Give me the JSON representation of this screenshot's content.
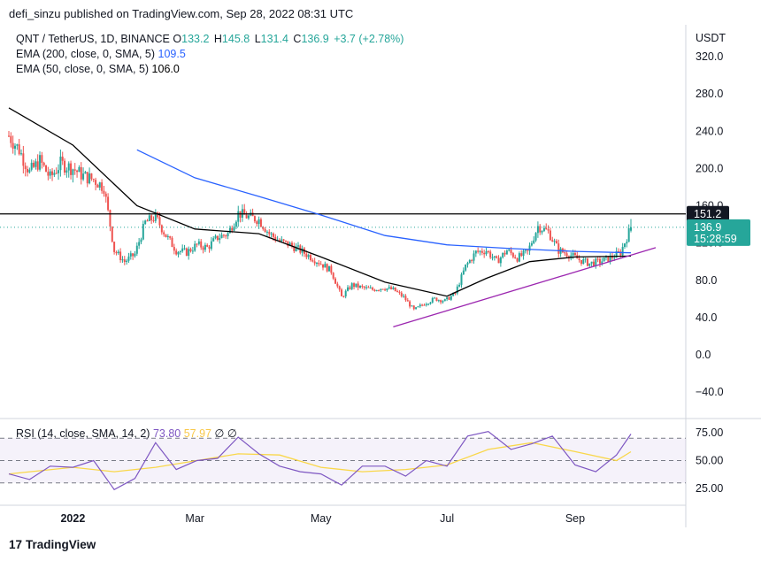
{
  "header": {
    "published": "defi_sinzu published on TradingView.com, Sep 28, 2022 08:31 UTC"
  },
  "legend": {
    "symbol": "QNT / TetherUS, 1D, BINANCE",
    "o_label": "O",
    "o": "133.2",
    "h_label": "H",
    "h": "145.8",
    "l_label": "L",
    "l": "131.4",
    "c_label": "C",
    "c": "136.9",
    "change": "+3.7 (+2.78%)",
    "ema200_label": "EMA (200, close, 0, SMA, 5)",
    "ema200_value": "109.5",
    "ema50_label": "EMA (50, close, 0, SMA, 5)",
    "ema50_value": "106.0",
    "rsi_label": "RSI (14, close, SMA, 14, 2)",
    "rsi_value": "73.80",
    "rsi_ma_value": "57.97",
    "rsi_extra": "∅ ∅"
  },
  "price_axis": {
    "currency": "USDT",
    "ticks": [
      "320.0",
      "280.0",
      "240.0",
      "200.0",
      "160.0",
      "120.0",
      "80.0",
      "40.0",
      "0.0",
      "−40.0"
    ]
  },
  "rsi_axis": {
    "ticks": [
      "75.00",
      "50.00",
      "25.00"
    ]
  },
  "time_axis": {
    "ticks": [
      "2022",
      "Mar",
      "May",
      "Jul",
      "Sep"
    ]
  },
  "markers": {
    "line_price": "151.2",
    "last_price": "136.9",
    "countdown": "15:28:59"
  },
  "branding": {
    "logo_text": "TradingView",
    "logo_glyph": "17"
  },
  "colors": {
    "up": "#26a69a",
    "down": "#ef5350",
    "ema200": "#2962ff",
    "ema50": "#000000",
    "trend": "#9c27b0",
    "rsi": "#7e57c2",
    "rsi_ma": "#f9d74a",
    "last": "#26a69a"
  },
  "chart_data": [
    {
      "type": "candlestick",
      "title": "QNT / TetherUS, 1D, BINANCE",
      "ylabel": "USDT",
      "ylim": [
        -60,
        340
      ],
      "x_ticks": [
        "2022",
        "Mar",
        "May",
        "Jul",
        "Sep"
      ],
      "close_series": [
        [
          "2021-12-01",
          235
        ],
        [
          "2021-12-06",
          220
        ],
        [
          "2021-12-11",
          196
        ],
        [
          "2021-12-16",
          208
        ],
        [
          "2021-12-21",
          190
        ],
        [
          "2021-12-26",
          205
        ],
        [
          "2022-01-01",
          200
        ],
        [
          "2022-01-06",
          192
        ],
        [
          "2022-01-11",
          188
        ],
        [
          "2022-01-16",
          180
        ],
        [
          "2022-01-21",
          112
        ],
        [
          "2022-01-26",
          100
        ],
        [
          "2022-01-31",
          108
        ],
        [
          "2022-02-05",
          142
        ],
        [
          "2022-02-10",
          148
        ],
        [
          "2022-02-15",
          128
        ],
        [
          "2022-02-20",
          112
        ],
        [
          "2022-02-25",
          110
        ],
        [
          "2022-03-02",
          118
        ],
        [
          "2022-03-07",
          115
        ],
        [
          "2022-03-12",
          126
        ],
        [
          "2022-03-17",
          130
        ],
        [
          "2022-03-22",
          152
        ],
        [
          "2022-03-27",
          148
        ],
        [
          "2022-04-01",
          145
        ],
        [
          "2022-04-06",
          130
        ],
        [
          "2022-04-11",
          122
        ],
        [
          "2022-04-16",
          118
        ],
        [
          "2022-04-21",
          112
        ],
        [
          "2022-04-26",
          105
        ],
        [
          "2022-05-01",
          98
        ],
        [
          "2022-05-06",
          90
        ],
        [
          "2022-05-11",
          62
        ],
        [
          "2022-05-16",
          75
        ],
        [
          "2022-05-21",
          72
        ],
        [
          "2022-05-26",
          70
        ],
        [
          "2022-05-31",
          72
        ],
        [
          "2022-06-05",
          70
        ],
        [
          "2022-06-10",
          62
        ],
        [
          "2022-06-15",
          48
        ],
        [
          "2022-06-20",
          55
        ],
        [
          "2022-06-25",
          60
        ],
        [
          "2022-06-30",
          58
        ],
        [
          "2022-07-05",
          66
        ],
        [
          "2022-07-10",
          95
        ],
        [
          "2022-07-15",
          110
        ],
        [
          "2022-07-20",
          112
        ],
        [
          "2022-07-25",
          100
        ],
        [
          "2022-07-30",
          112
        ],
        [
          "2022-08-04",
          104
        ],
        [
          "2022-08-09",
          110
        ],
        [
          "2022-08-14",
          138
        ],
        [
          "2022-08-19",
          132
        ],
        [
          "2022-08-24",
          112
        ],
        [
          "2022-08-29",
          108
        ],
        [
          "2022-09-03",
          102
        ],
        [
          "2022-09-08",
          98
        ],
        [
          "2022-09-13",
          100
        ],
        [
          "2022-09-18",
          104
        ],
        [
          "2022-09-23",
          110
        ],
        [
          "2022-09-28",
          136.9
        ]
      ],
      "last_candle": {
        "open": 133.2,
        "high": 145.8,
        "low": 131.4,
        "close": 136.9
      },
      "ema200": [
        [
          "2022-02-01",
          220
        ],
        [
          "2022-03-01",
          190
        ],
        [
          "2022-04-01",
          170
        ],
        [
          "2022-05-01",
          150
        ],
        [
          "2022-06-01",
          128
        ],
        [
          "2022-07-01",
          118
        ],
        [
          "2022-08-01",
          114
        ],
        [
          "2022-09-01",
          111
        ],
        [
          "2022-09-28",
          109.5
        ]
      ],
      "ema50": [
        [
          "2021-12-01",
          265
        ],
        [
          "2022-01-01",
          225
        ],
        [
          "2022-02-01",
          160
        ],
        [
          "2022-03-01",
          135
        ],
        [
          "2022-04-01",
          130
        ],
        [
          "2022-05-01",
          105
        ],
        [
          "2022-06-01",
          78
        ],
        [
          "2022-07-01",
          63
        ],
        [
          "2022-07-20",
          82
        ],
        [
          "2022-08-10",
          100
        ],
        [
          "2022-09-01",
          105
        ],
        [
          "2022-09-28",
          106
        ]
      ],
      "horizontal_line": 151.2,
      "trendline": [
        [
          "2022-06-05",
          30
        ],
        [
          "2022-10-10",
          115
        ]
      ]
    },
    {
      "type": "line",
      "title": "RSI (14, close, SMA, 14, 2)",
      "ylim": [
        0,
        100
      ],
      "bands": [
        30,
        50,
        70
      ],
      "series": [
        {
          "name": "RSI",
          "points": [
            [
              "2021-12-01",
              38
            ],
            [
              "2021-12-11",
              33
            ],
            [
              "2021-12-21",
              45
            ],
            [
              "2022-01-01",
              44
            ],
            [
              "2022-01-11",
              50
            ],
            [
              "2022-01-21",
              24
            ],
            [
              "2022-01-31",
              34
            ],
            [
              "2022-02-10",
              66
            ],
            [
              "2022-02-20",
              42
            ],
            [
              "2022-03-02",
              50
            ],
            [
              "2022-03-12",
              52
            ],
            [
              "2022-03-22",
              71
            ],
            [
              "2022-04-01",
              56
            ],
            [
              "2022-04-11",
              45
            ],
            [
              "2022-04-21",
              40
            ],
            [
              "2022-05-01",
              38
            ],
            [
              "2022-05-11",
              28
            ],
            [
              "2022-05-21",
              45
            ],
            [
              "2022-06-01",
              45
            ],
            [
              "2022-06-11",
              36
            ],
            [
              "2022-06-21",
              50
            ],
            [
              "2022-07-01",
              45
            ],
            [
              "2022-07-11",
              72
            ],
            [
              "2022-07-21",
              76
            ],
            [
              "2022-08-01",
              60
            ],
            [
              "2022-08-11",
              65
            ],
            [
              "2022-08-21",
              72
            ],
            [
              "2022-09-01",
              46
            ],
            [
              "2022-09-11",
              40
            ],
            [
              "2022-09-21",
              55
            ],
            [
              "2022-09-28",
              73.8
            ]
          ]
        },
        {
          "name": "RSI-based MA",
          "points": [
            [
              "2021-12-01",
              38
            ],
            [
              "2022-01-01",
              44
            ],
            [
              "2022-01-21",
              40
            ],
            [
              "2022-02-10",
              44
            ],
            [
              "2022-03-02",
              50
            ],
            [
              "2022-03-22",
              56
            ],
            [
              "2022-04-11",
              55
            ],
            [
              "2022-05-01",
              44
            ],
            [
              "2022-05-21",
              40
            ],
            [
              "2022-06-11",
              42
            ],
            [
              "2022-07-01",
              46
            ],
            [
              "2022-07-21",
              60
            ],
            [
              "2022-08-11",
              66
            ],
            [
              "2022-09-01",
              58
            ],
            [
              "2022-09-21",
              50
            ],
            [
              "2022-09-28",
              57.97
            ]
          ]
        }
      ]
    }
  ]
}
